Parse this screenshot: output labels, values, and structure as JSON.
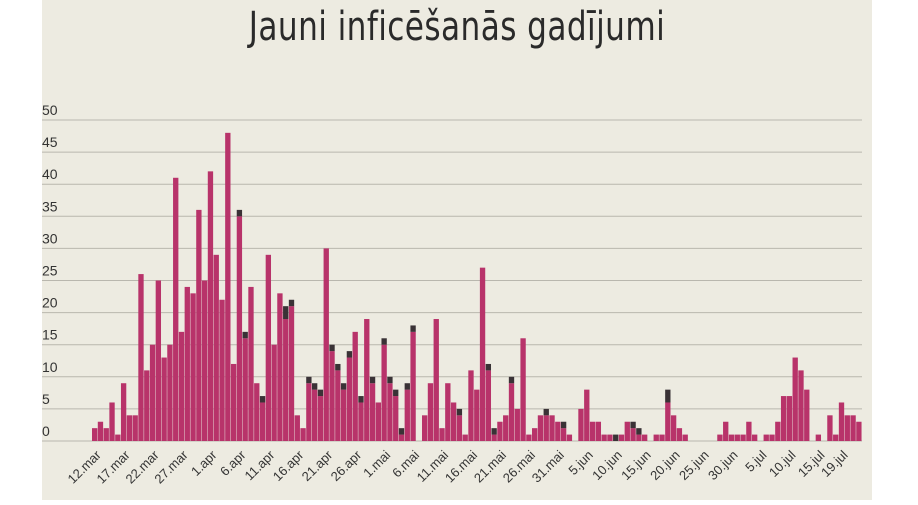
{
  "chart_data": {
    "type": "bar",
    "title": "Jauni inficēšanās gadījumi",
    "ylim": [
      0,
      50
    ],
    "yticks": [
      0,
      5,
      10,
      15,
      20,
      25,
      30,
      35,
      40,
      45,
      50
    ],
    "grid": true,
    "colors": {
      "main": "#b8336a",
      "dark": "#3a3236",
      "background": "#edebe1"
    },
    "xtick_labels": [
      "12.mar",
      "17.mar",
      "22.mar",
      "27.mar",
      "1.apr",
      "6.apr",
      "11.apr",
      "16.apr",
      "21.apr",
      "26.apr",
      "1.mai",
      "6.mai",
      "11.mai",
      "16.mai",
      "21.mai",
      "26.mai",
      "31.mai",
      "5.jun",
      "10.jun",
      "15.jun",
      "20.jun",
      "25.jun",
      "30.jun",
      "5.jul",
      "10.jul",
      "15.jul",
      "19.jul"
    ],
    "xtick_index": [
      0,
      5,
      10,
      15,
      20,
      25,
      30,
      35,
      40,
      45,
      50,
      55,
      60,
      65,
      70,
      75,
      80,
      85,
      90,
      95,
      100,
      105,
      110,
      115,
      120,
      125,
      129
    ],
    "series": [
      {
        "values": [
          2,
          3,
          2,
          6,
          1,
          9,
          4,
          4,
          26,
          11,
          15,
          25,
          13,
          15,
          41,
          17,
          24,
          23,
          36,
          25,
          42,
          29,
          22,
          48,
          12,
          35,
          16,
          24,
          9,
          6,
          29,
          15,
          23,
          19,
          21,
          4,
          2,
          9,
          8,
          7,
          30,
          14,
          11,
          8,
          13,
          17,
          6,
          19,
          9,
          6,
          15,
          9,
          7,
          1,
          8,
          17,
          0,
          4,
          9,
          19,
          2,
          9,
          6,
          4,
          1,
          11,
          8,
          27,
          11,
          1,
          3,
          4,
          9,
          5,
          16,
          1,
          2,
          4,
          4,
          4,
          3,
          2,
          1,
          0,
          5,
          8,
          3,
          3,
          1,
          1,
          0,
          1,
          3,
          2,
          1,
          1,
          0,
          1,
          1,
          6,
          4,
          2,
          1,
          0,
          0,
          0,
          0,
          0,
          1,
          3,
          1,
          1,
          1,
          3,
          1,
          0,
          1,
          1,
          3,
          7,
          7,
          13,
          11,
          8,
          0,
          1,
          0,
          4,
          1,
          6,
          4,
          4,
          3
        ]
      },
      {
        "values": [
          0,
          0,
          0,
          0,
          0,
          0,
          0,
          0,
          0,
          0,
          0,
          0,
          0,
          0,
          0,
          0,
          0,
          0,
          0,
          0,
          0,
          0,
          0,
          0,
          0,
          1,
          1,
          0,
          0,
          1,
          0,
          0,
          0,
          2,
          1,
          0,
          0,
          1,
          1,
          1,
          0,
          1,
          1,
          1,
          1,
          0,
          1,
          0,
          1,
          0,
          1,
          1,
          1,
          1,
          1,
          1,
          0,
          0,
          0,
          0,
          0,
          0,
          0,
          1,
          0,
          0,
          0,
          0,
          1,
          1,
          0,
          0,
          1,
          0,
          0,
          0,
          0,
          0,
          1,
          0,
          0,
          1,
          0,
          0,
          0,
          0,
          0,
          0,
          0,
          0,
          1,
          0,
          0,
          1,
          1,
          0,
          0,
          0,
          0,
          2,
          0,
          0,
          0,
          0,
          0,
          0,
          0,
          0,
          0,
          0,
          0,
          0,
          0,
          0,
          0,
          0,
          0,
          0,
          0,
          0,
          0,
          0,
          0,
          0,
          0,
          0,
          0,
          0,
          0,
          0,
          0,
          0,
          0
        ]
      }
    ]
  }
}
